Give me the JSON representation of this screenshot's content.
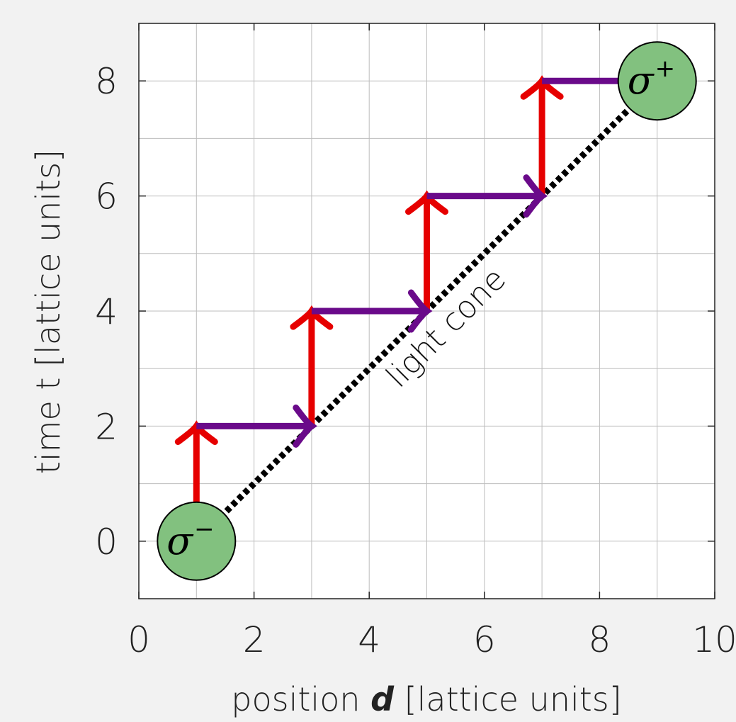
{
  "chart_data": {
    "type": "diagram",
    "xlabel": {
      "prefix": "position ",
      "var": "d",
      "suffix": " [lattice units]"
    },
    "ylabel": "time t [lattice units]",
    "xlim": [
      0,
      10
    ],
    "ylim": [
      -1,
      9
    ],
    "x_ticks": [
      0,
      2,
      4,
      6,
      8,
      10
    ],
    "y_ticks": [
      0,
      2,
      4,
      6,
      8
    ],
    "grid": true,
    "grid_step": 1,
    "light_cone": {
      "label": "light cone",
      "from": [
        1,
        0
      ],
      "to": [
        9,
        8
      ],
      "style": "dotted"
    },
    "time_steps": [
      {
        "x": 1,
        "from": 0,
        "to": 2
      },
      {
        "x": 3,
        "from": 2,
        "to": 4
      },
      {
        "x": 5,
        "from": 4,
        "to": 6
      },
      {
        "x": 7,
        "from": 6,
        "to": 8
      }
    ],
    "space_steps": [
      {
        "t": 2,
        "from": 1,
        "to": 3
      },
      {
        "t": 4,
        "from": 3,
        "to": 5
      },
      {
        "t": 6,
        "from": 5,
        "to": 7
      },
      {
        "t": 8,
        "from": 7,
        "to": 9
      }
    ],
    "nodes": [
      {
        "x": 1,
        "t": 0,
        "symbol": "σ",
        "sup": "−"
      },
      {
        "x": 9,
        "t": 8,
        "symbol": "σ",
        "sup": "+"
      }
    ],
    "colors": {
      "time_step": "#e60000",
      "space_step": "#6a0a8a",
      "node_fill": "#82c17f",
      "cone": "#000000",
      "grid": "#bdbdbd"
    }
  }
}
